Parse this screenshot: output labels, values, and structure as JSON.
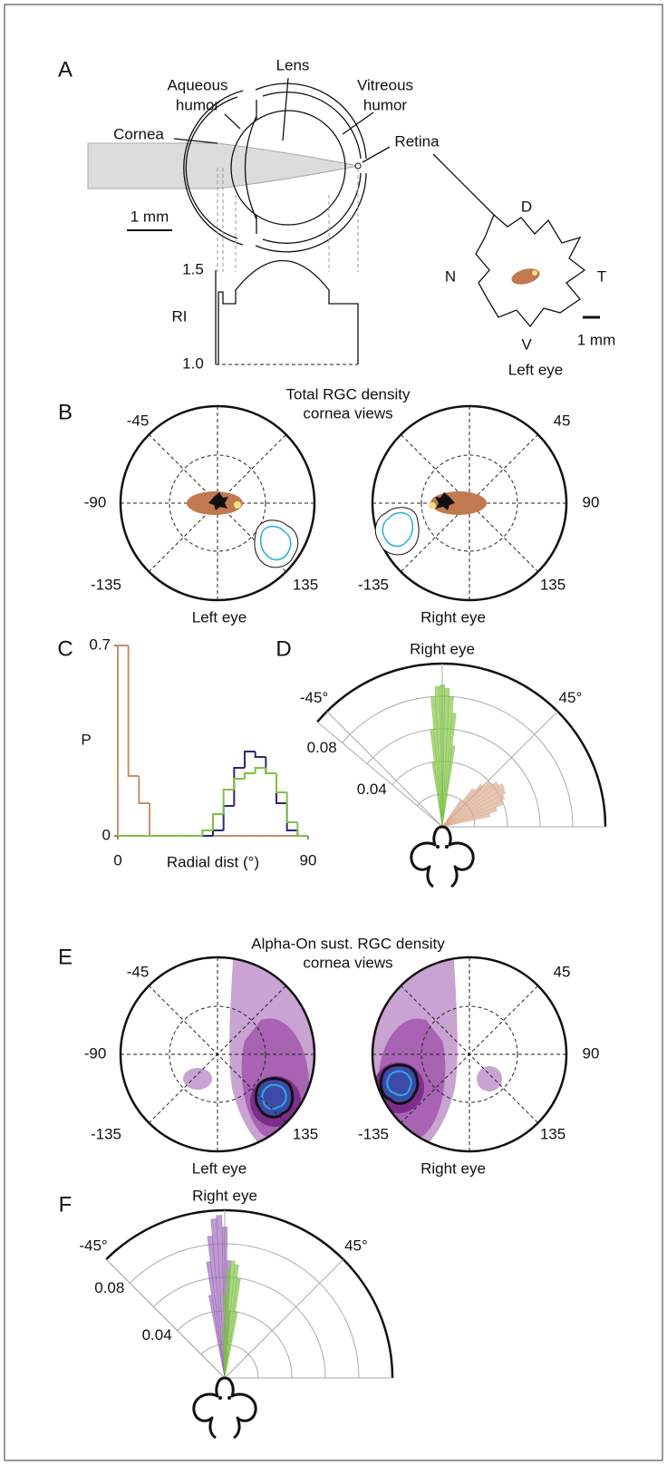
{
  "figure": {
    "A": {
      "label": "A",
      "lens": "Lens",
      "aqueous": [
        "Aqueous",
        "humor"
      ],
      "vitreous": [
        "Vitreous",
        "humor"
      ],
      "cornea": "Cornea",
      "retina": "Retina",
      "scale_bar": "1 mm",
      "ri_axis": "RI",
      "ri_ticks": [
        "1.5",
        "1.0"
      ],
      "dorsal": "D",
      "nasal": "N",
      "temporal": "T",
      "ventral": "V",
      "retina_scale": "1 mm",
      "retina_eye": "Left eye"
    },
    "B": {
      "label": "B",
      "title": [
        "Total RGC density",
        "cornea views"
      ],
      "left_angles": [
        "-45",
        "-90",
        "-135",
        "135"
      ],
      "left_eye": "Left eye",
      "right_angles": [
        "45",
        "90",
        "135",
        "-135"
      ],
      "right_eye": "Right eye"
    },
    "C": {
      "label": "C"
    },
    "D": {
      "label": "D"
    },
    "E": {
      "label": "E",
      "title": [
        "Alpha-On sust. RGC density",
        "cornea views"
      ],
      "left_angles": [
        "-45",
        "-90",
        "-135",
        "135"
      ],
      "left_eye": "Left eye",
      "right_angles": [
        "45",
        "90",
        "135",
        "-135"
      ],
      "right_eye": "Right eye"
    },
    "F": {
      "label": "F"
    }
  },
  "chart_data": [
    {
      "type": "histogram",
      "xlabel": "Radial dist (°)",
      "ylabel": "P",
      "bins": [
        0,
        5,
        10,
        15,
        20,
        25,
        30,
        35,
        40,
        45,
        50,
        55,
        60,
        65,
        70,
        75,
        80,
        85,
        90
      ],
      "series": [
        {
          "color": "#c8906a",
          "values": [
            0.7,
            0.22,
            0.12,
            0,
            0,
            0,
            0,
            0,
            0,
            0,
            0,
            0,
            0,
            0,
            0,
            0,
            0,
            0
          ]
        },
        {
          "color": "#2a2a6e",
          "values": [
            0,
            0,
            0,
            0,
            0,
            0,
            0,
            0,
            0,
            0.02,
            0.11,
            0.25,
            0.31,
            0.29,
            0.23,
            0.12,
            0.02,
            0
          ]
        },
        {
          "color": "#7dc242",
          "values": [
            0,
            0,
            0,
            0,
            0,
            0,
            0,
            0,
            0.02,
            0.08,
            0.17,
            0.21,
            0.23,
            0.25,
            0.23,
            0.16,
            0.05,
            0
          ]
        }
      ],
      "xlim": [
        0,
        90
      ],
      "ylim": [
        0,
        0.7
      ],
      "xticks": [
        0,
        90
      ],
      "yticks": [
        0,
        0.7
      ]
    },
    {
      "type": "polar_bar",
      "title": "Right eye",
      "rlim": [
        0,
        0.1
      ],
      "rgrid": [
        0.02,
        0.04,
        0.06,
        0.08
      ],
      "rticks": [
        0.04,
        0.08
      ],
      "thetalim": [
        -50,
        90
      ],
      "thetagrid": [
        -45,
        0,
        45,
        90
      ],
      "thetaticks": [
        {
          "value": -45,
          "label": "-45°"
        },
        {
          "value": 45,
          "label": "45°"
        }
      ],
      "series": [
        {
          "color": "#d9a98c",
          "width": 4,
          "theta": [
            36,
            40,
            44,
            48,
            52,
            56,
            60,
            64,
            68,
            72,
            76
          ],
          "values": [
            0.02,
            0.03,
            0.035,
            0.04,
            0.043,
            0.045,
            0.044,
            0.042,
            0.04,
            0.035,
            0.03
          ]
        },
        {
          "color": "#7dc242",
          "width": 2,
          "theta": [
            -8,
            -6,
            -4,
            -2,
            0,
            2,
            4,
            6,
            8
          ],
          "values": [
            0.04,
            0.06,
            0.08,
            0.086,
            0.087,
            0.085,
            0.08,
            0.07,
            0.05
          ]
        }
      ]
    },
    {
      "type": "polar_bar",
      "title": "Right eye",
      "rlim": [
        0,
        0.1
      ],
      "rgrid": [
        0.02,
        0.04,
        0.06,
        0.08
      ],
      "rticks": [
        0.04,
        0.08
      ],
      "thetalim": [
        -45,
        90
      ],
      "thetagrid": [
        -45,
        0,
        45,
        90
      ],
      "thetaticks": [
        {
          "value": -45,
          "label": "-45°"
        },
        {
          "value": 45,
          "label": "45°"
        }
      ],
      "series": [
        {
          "color": "#9a64b8",
          "width": 2,
          "theta": [
            -10,
            -8,
            -6,
            -4,
            -2,
            0,
            2,
            4
          ],
          "values": [
            0.05,
            0.07,
            0.085,
            0.095,
            0.097,
            0.09,
            0.07,
            0.04
          ]
        },
        {
          "color": "#7dc242",
          "width": 2,
          "theta": [
            -2,
            0,
            2,
            4,
            6,
            8,
            10
          ],
          "values": [
            0.03,
            0.05,
            0.065,
            0.07,
            0.068,
            0.06,
            0.04
          ]
        }
      ]
    }
  ]
}
